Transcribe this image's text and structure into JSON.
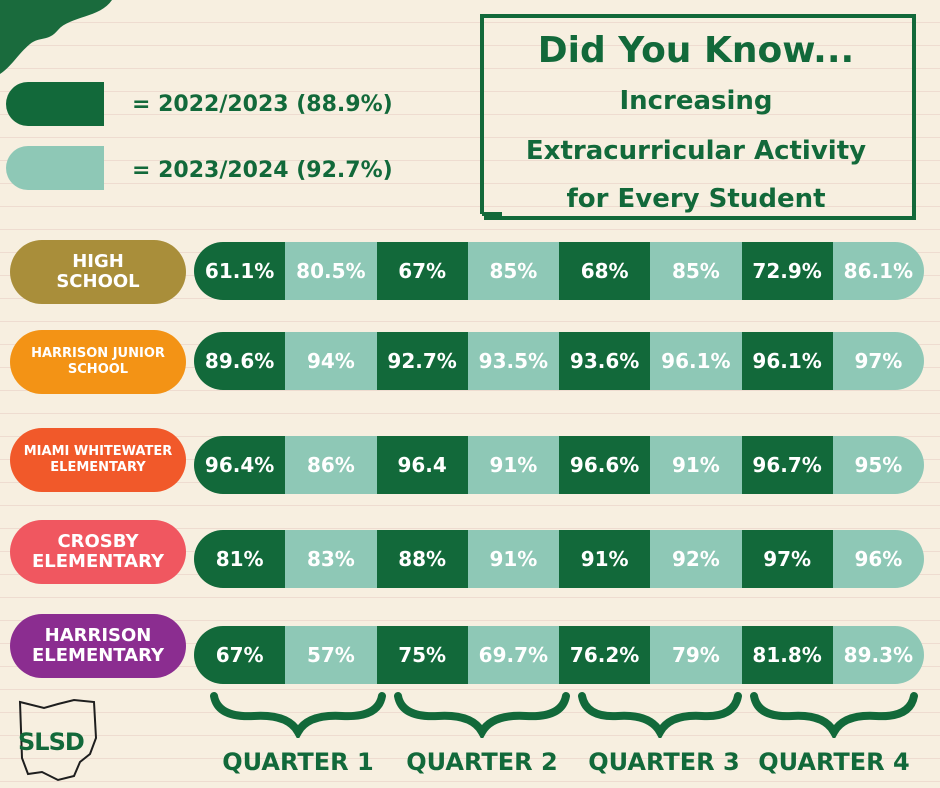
{
  "legend": [
    {
      "label": "= 2022/2023 (88.9%)",
      "color": "#12693a"
    },
    {
      "label": "= 2023/2024 (92.7%)",
      "color": "#8ec8b6"
    }
  ],
  "callout": {
    "title": "Did You Know...",
    "lines": [
      "Increasing",
      "Extracurricular Activity",
      "for Every Student"
    ]
  },
  "schools": [
    {
      "name_lines": [
        "HIGH",
        "SCHOOL"
      ],
      "color": "#a98e3a",
      "values": [
        "61.1%",
        "80.5%",
        "67%",
        "85%",
        "68%",
        "85%",
        "72.9%",
        "86.1%"
      ]
    },
    {
      "name_lines": [
        "HARRISON JUNIOR",
        "SCHOOL"
      ],
      "color": "#f39315",
      "values": [
        "89.6%",
        "94%",
        "92.7%",
        "93.5%",
        "93.6%",
        "96.1%",
        "96.1%",
        "97%"
      ]
    },
    {
      "name_lines": [
        "MIAMI WHITEWATER",
        "ELEMENTARY"
      ],
      "color": "#f1592a",
      "values": [
        "96.4%",
        "86%",
        "96.4",
        "91%",
        "96.6%",
        "91%",
        "96.7%",
        "95%"
      ]
    },
    {
      "name_lines": [
        "CROSBY",
        "ELEMENTARY"
      ],
      "color": "#f05760",
      "values": [
        "81%",
        "83%",
        "88%",
        "91%",
        "91%",
        "92%",
        "97%",
        "96%"
      ]
    },
    {
      "name_lines": [
        "HARRISON",
        "ELEMENTARY"
      ],
      "color": "#8b2d90",
      "values": [
        "67%",
        "57%",
        "75%",
        "69.7%",
        "76.2%",
        "79%",
        "81.8%",
        "89.3%"
      ]
    }
  ],
  "quarters": [
    "QUARTER 1",
    "QUARTER 2",
    "QUARTER 3",
    "QUARTER 4"
  ],
  "logo": {
    "text": "SLSD"
  },
  "colors": {
    "year1": "#12693a",
    "year2": "#8ec8b6",
    "text": "#12693a"
  }
}
